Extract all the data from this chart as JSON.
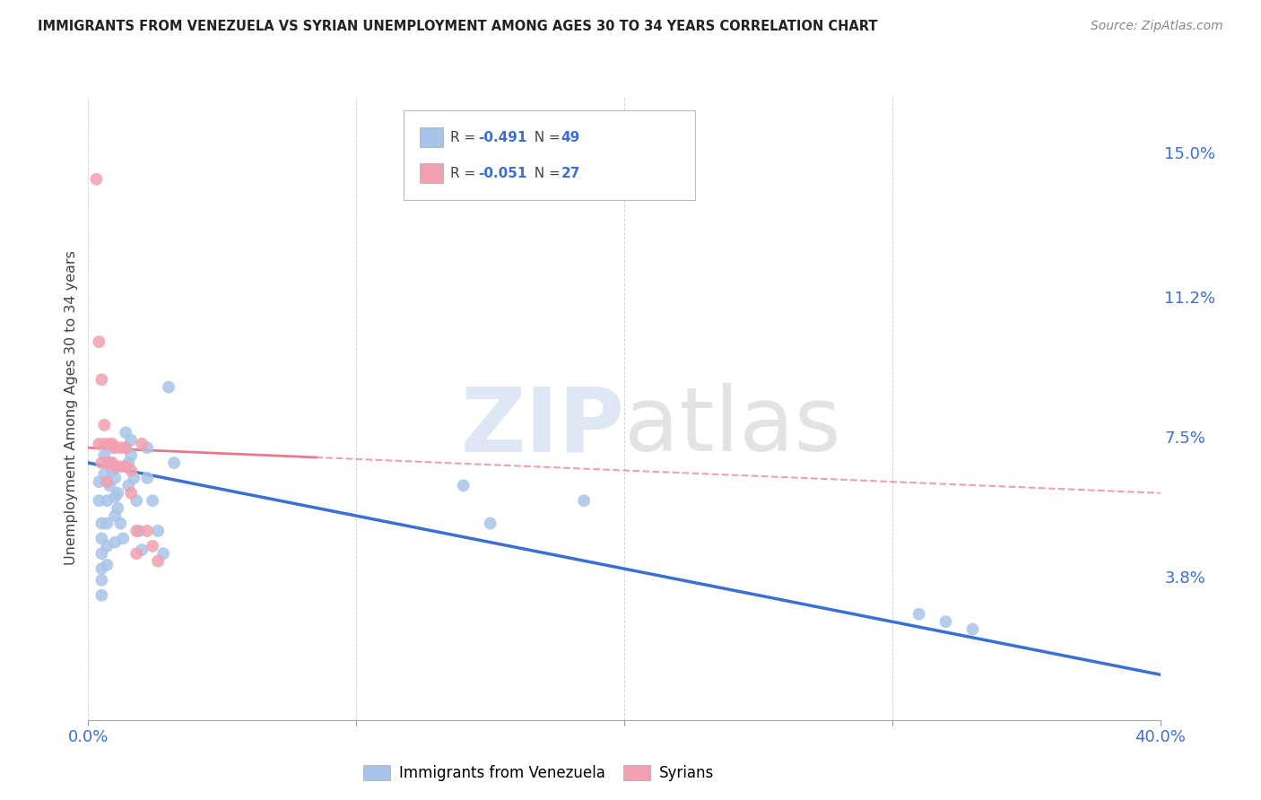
{
  "title": "IMMIGRANTS FROM VENEZUELA VS SYRIAN UNEMPLOYMENT AMONG AGES 30 TO 34 YEARS CORRELATION CHART",
  "source": "Source: ZipAtlas.com",
  "ylabel": "Unemployment Among Ages 30 to 34 years",
  "xlim": [
    0.0,
    0.4
  ],
  "ylim": [
    0.0,
    0.165
  ],
  "right_ytick_labels": [
    "15.0%",
    "11.2%",
    "7.5%",
    "3.8%"
  ],
  "right_ytick_positions": [
    0.15,
    0.112,
    0.075,
    0.038
  ],
  "venezuela_color": "#a8c4e8",
  "syria_color": "#f2a0b0",
  "venezuela_line_color": "#3b6fd4",
  "syria_line_color": "#e8788a",
  "R_venezuela": -0.491,
  "N_venezuela": 49,
  "R_syria": -0.051,
  "N_syria": 27,
  "venezuela_scatter": [
    [
      0.004,
      0.063
    ],
    [
      0.004,
      0.058
    ],
    [
      0.005,
      0.052
    ],
    [
      0.005,
      0.048
    ],
    [
      0.005,
      0.044
    ],
    [
      0.005,
      0.04
    ],
    [
      0.005,
      0.037
    ],
    [
      0.005,
      0.033
    ],
    [
      0.006,
      0.07
    ],
    [
      0.006,
      0.065
    ],
    [
      0.007,
      0.058
    ],
    [
      0.007,
      0.052
    ],
    [
      0.007,
      0.046
    ],
    [
      0.007,
      0.041
    ],
    [
      0.008,
      0.068
    ],
    [
      0.008,
      0.062
    ],
    [
      0.009,
      0.072
    ],
    [
      0.009,
      0.066
    ],
    [
      0.01,
      0.064
    ],
    [
      0.01,
      0.059
    ],
    [
      0.01,
      0.054
    ],
    [
      0.01,
      0.047
    ],
    [
      0.011,
      0.06
    ],
    [
      0.011,
      0.056
    ],
    [
      0.012,
      0.052
    ],
    [
      0.013,
      0.048
    ],
    [
      0.014,
      0.076
    ],
    [
      0.014,
      0.072
    ],
    [
      0.015,
      0.068
    ],
    [
      0.015,
      0.062
    ],
    [
      0.016,
      0.074
    ],
    [
      0.016,
      0.07
    ],
    [
      0.017,
      0.064
    ],
    [
      0.018,
      0.058
    ],
    [
      0.019,
      0.05
    ],
    [
      0.02,
      0.045
    ],
    [
      0.022,
      0.072
    ],
    [
      0.022,
      0.064
    ],
    [
      0.024,
      0.058
    ],
    [
      0.026,
      0.05
    ],
    [
      0.028,
      0.044
    ],
    [
      0.03,
      0.088
    ],
    [
      0.032,
      0.068
    ],
    [
      0.14,
      0.062
    ],
    [
      0.15,
      0.052
    ],
    [
      0.185,
      0.058
    ],
    [
      0.31,
      0.028
    ],
    [
      0.32,
      0.026
    ],
    [
      0.33,
      0.024
    ]
  ],
  "syria_scatter": [
    [
      0.003,
      0.143
    ],
    [
      0.004,
      0.1
    ],
    [
      0.005,
      0.09
    ],
    [
      0.004,
      0.073
    ],
    [
      0.005,
      0.068
    ],
    [
      0.006,
      0.078
    ],
    [
      0.006,
      0.073
    ],
    [
      0.007,
      0.068
    ],
    [
      0.007,
      0.063
    ],
    [
      0.008,
      0.073
    ],
    [
      0.008,
      0.068
    ],
    [
      0.009,
      0.073
    ],
    [
      0.009,
      0.068
    ],
    [
      0.01,
      0.072
    ],
    [
      0.01,
      0.067
    ],
    [
      0.012,
      0.072
    ],
    [
      0.012,
      0.067
    ],
    [
      0.014,
      0.072
    ],
    [
      0.014,
      0.067
    ],
    [
      0.016,
      0.066
    ],
    [
      0.016,
      0.06
    ],
    [
      0.018,
      0.05
    ],
    [
      0.018,
      0.044
    ],
    [
      0.02,
      0.073
    ],
    [
      0.022,
      0.05
    ],
    [
      0.024,
      0.046
    ],
    [
      0.026,
      0.042
    ]
  ],
  "venezuela_trendline": [
    [
      0.0,
      0.068
    ],
    [
      0.4,
      0.012
    ]
  ],
  "syria_trendline": [
    [
      0.0,
      0.072
    ],
    [
      0.4,
      0.06
    ]
  ],
  "watermark_zip": "ZIP",
  "watermark_atlas": "atlas",
  "grid_color": "#cccccc",
  "background_color": "#ffffff"
}
